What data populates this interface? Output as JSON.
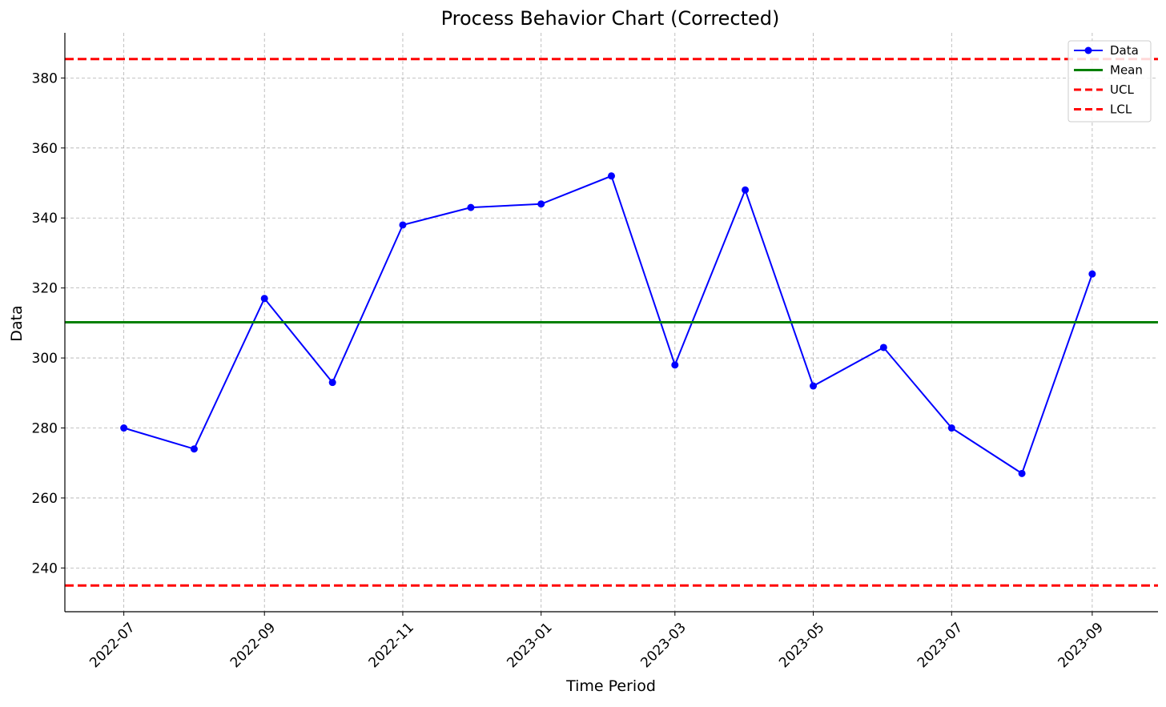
{
  "chart_data": {
    "type": "line",
    "title": "Process Behavior Chart (Corrected)",
    "xlabel": "Time Period",
    "ylabel": "Data",
    "x_type": "date",
    "xlim": [
      "2022-06-05",
      "2023-09-30"
    ],
    "ylim": [
      227.5,
      392.9
    ],
    "grid": true,
    "grid_style": "dashed",
    "legend_position": "top-right",
    "x_ticks": [
      "2022-07",
      "2022-09",
      "2022-11",
      "2023-01",
      "2023-03",
      "2023-05",
      "2023-07",
      "2023-09"
    ],
    "x_tick_dates": [
      "2022-07-01",
      "2022-09-01",
      "2022-11-01",
      "2023-01-01",
      "2023-03-01",
      "2023-05-01",
      "2023-07-01",
      "2023-09-01"
    ],
    "y_ticks": [
      240,
      260,
      280,
      300,
      320,
      340,
      360,
      380
    ],
    "series": [
      {
        "name": "Data",
        "kind": "line-with-markers",
        "color": "#0000ff",
        "x": [
          "2022-07-01",
          "2022-08-01",
          "2022-09-01",
          "2022-10-01",
          "2022-11-01",
          "2022-12-01",
          "2023-01-01",
          "2023-02-01",
          "2023-03-01",
          "2023-04-01",
          "2023-05-01",
          "2023-06-01",
          "2023-07-01",
          "2023-08-01",
          "2023-09-01"
        ],
        "y": [
          280,
          274,
          317,
          293,
          338,
          343,
          344,
          352,
          298,
          348,
          292,
          303,
          280,
          267,
          324
        ]
      },
      {
        "name": "Mean",
        "kind": "hline",
        "color": "#008000",
        "linestyle": "solid",
        "value": 310.2
      },
      {
        "name": "UCL",
        "kind": "hline",
        "color": "#ff0000",
        "linestyle": "dashed",
        "value": 385.4
      },
      {
        "name": "LCL",
        "kind": "hline",
        "color": "#ff0000",
        "linestyle": "dashed",
        "value": 235.0
      }
    ]
  }
}
